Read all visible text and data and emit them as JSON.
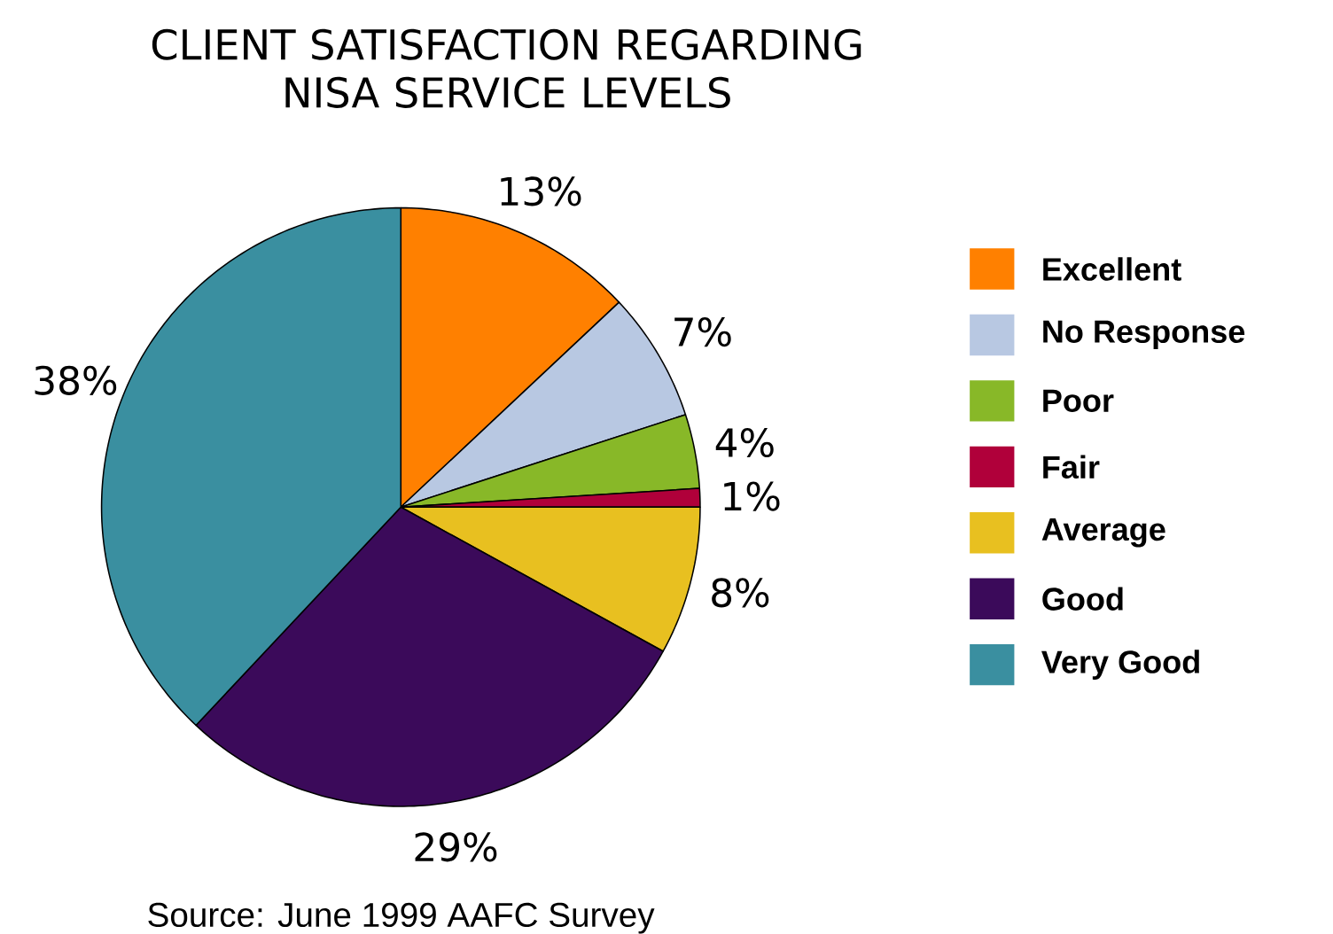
{
  "chart_data": {
    "type": "pie",
    "title": "CLIENT SATISFACTION REGARDING NISA SERVICE LEVELS",
    "categories": [
      "Excellent",
      "No Response",
      "Poor",
      "Fair",
      "Average",
      "Good",
      "Very Good"
    ],
    "values": [
      13,
      7,
      4,
      1,
      8,
      29,
      38
    ],
    "value_labels": [
      "13%",
      "7%",
      "4%",
      "1%",
      "8%",
      "29%",
      "38%"
    ],
    "colors": [
      "#ff8000",
      "#b8c8e2",
      "#88b828",
      "#b0003a",
      "#e8c020",
      "#3b0a5a",
      "#3a8fa0"
    ],
    "legend": "right",
    "annotations": [
      "Source: June 1999 AAFC Survey"
    ]
  }
}
